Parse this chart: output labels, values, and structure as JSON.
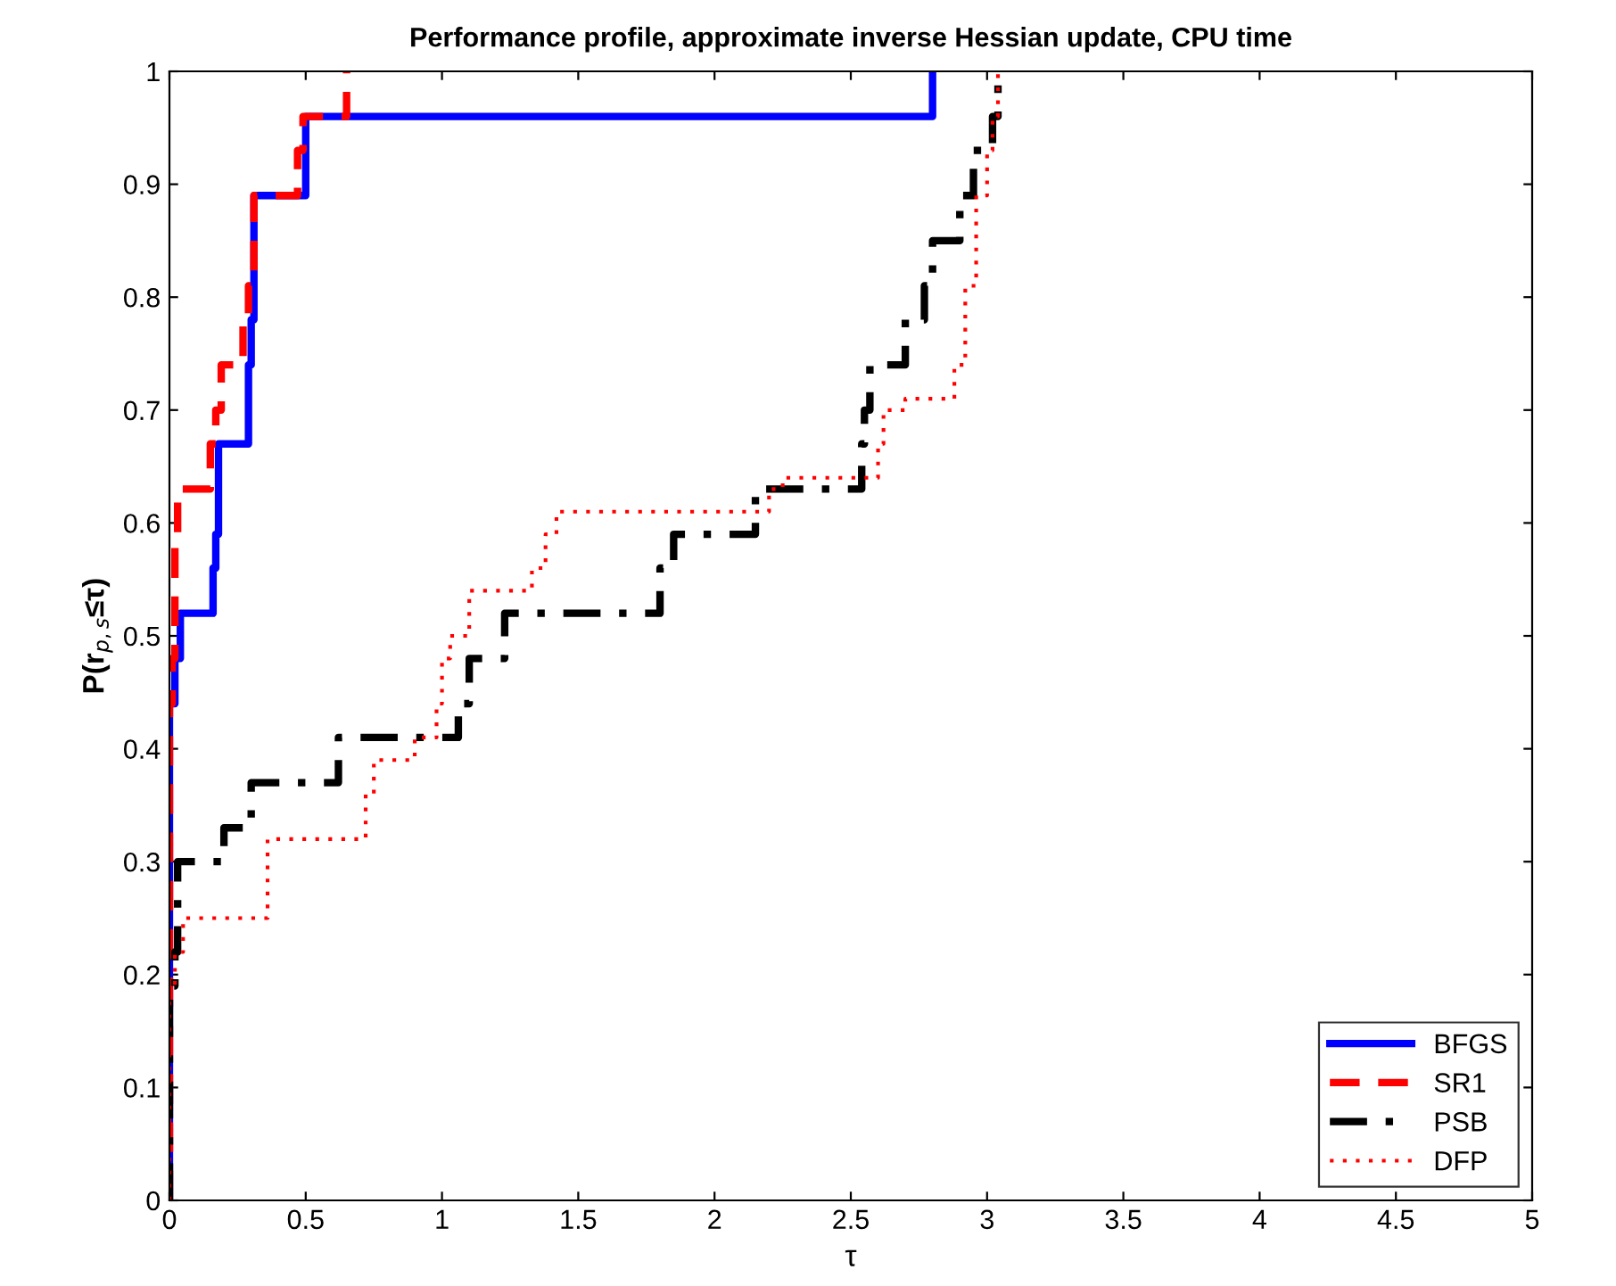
{
  "chart_data": {
    "type": "step",
    "title": "Performance profile, approximate inverse Hessian update, CPU time",
    "xlabel": "τ",
    "ylabel": "P(r$_{p,s}$≤τ)",
    "xlim": [
      0,
      5
    ],
    "xticks": [
      0,
      0.5,
      1,
      1.5,
      2,
      2.5,
      3,
      3.5,
      4,
      4.5,
      5
    ],
    "ylim": [
      0,
      1
    ],
    "yticks": [
      0,
      0.1,
      0.2,
      0.3,
      0.4,
      0.5,
      0.6,
      0.7,
      0.8,
      0.9,
      1
    ],
    "grid": false,
    "legend": "bottom right",
    "series": [
      {
        "name": "BFGS",
        "color": "#0000ff",
        "line_style": "solid",
        "x": [
          0,
          0,
          0.02,
          0.04,
          0.16,
          0.17,
          0.18,
          0.29,
          0.3,
          0.31,
          0.5,
          2.8
        ],
        "values": [
          0,
          0.44,
          0.48,
          0.52,
          0.56,
          0.59,
          0.67,
          0.74,
          0.78,
          0.89,
          0.96,
          1
        ]
      },
      {
        "name": "SR1",
        "color": "#ff0000",
        "line_style": "dashed",
        "x": [
          0,
          0,
          0.01,
          0.02,
          0.03,
          0.15,
          0.17,
          0.19,
          0.27,
          0.29,
          0.31,
          0.47,
          0.49,
          0.65
        ],
        "values": [
          0,
          0.44,
          0.48,
          0.59,
          0.63,
          0.67,
          0.7,
          0.74,
          0.78,
          0.81,
          0.89,
          0.93,
          0.96,
          1
        ]
      },
      {
        "name": "PSB",
        "color": "#000000",
        "line_style": "dashdot",
        "x": [
          0,
          0,
          0.02,
          0.03,
          0.14,
          0.2,
          0.3,
          0.62,
          1.06,
          1.1,
          1.23,
          1.8,
          1.85,
          2.15,
          2.54,
          2.55,
          2.57,
          2.7,
          2.77,
          2.8,
          2.9,
          2.95,
          3.02,
          3.04
        ],
        "values": [
          0,
          0.19,
          0.22,
          0.3,
          0.3,
          0.33,
          0.37,
          0.41,
          0.44,
          0.48,
          0.52,
          0.56,
          0.59,
          0.63,
          0.67,
          0.7,
          0.74,
          0.78,
          0.81,
          0.85,
          0.89,
          0.93,
          0.96,
          1
        ]
      },
      {
        "name": "DFP",
        "color": "#ff0000",
        "line_style": "dotted",
        "x": [
          0,
          0,
          0.02,
          0.05,
          0.36,
          0.72,
          0.75,
          0.9,
          0.98,
          1.0,
          1.03,
          1.1,
          1.33,
          1.38,
          1.42,
          2.2,
          2.25,
          2.6,
          2.62,
          2.7,
          2.88,
          2.92,
          2.96,
          3.0,
          3.02,
          3.04
        ],
        "values": [
          0,
          0.19,
          0.22,
          0.25,
          0.32,
          0.36,
          0.39,
          0.41,
          0.44,
          0.48,
          0.5,
          0.54,
          0.56,
          0.59,
          0.61,
          0.63,
          0.64,
          0.67,
          0.7,
          0.71,
          0.74,
          0.81,
          0.89,
          0.93,
          0.96,
          1
        ]
      }
    ]
  }
}
